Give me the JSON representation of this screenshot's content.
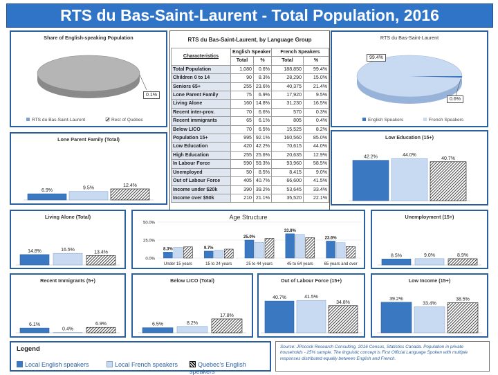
{
  "title": "RTS du Bas-Saint-Laurent - Total Population, 2016",
  "colors": {
    "english": "#3b78c2",
    "french": "#c7daf1",
    "quebec_english": "hatch-black",
    "frame": "#2a5f9e"
  },
  "pie_share": {
    "title": "Share of English-speaking Population",
    "label": "0.1%",
    "legend": [
      "RTS du Bas-Saint-Laurent",
      "Rest of Quebec"
    ]
  },
  "pie_lang": {
    "title": "RTS du Bas-Saint-Laurent",
    "label_fr": "99.4%",
    "label_en": "0.6%",
    "legend": [
      "English Speakers",
      "French Speakers"
    ]
  },
  "table": {
    "title": "RTS du Bas-Saint-Laurent, by Language Group",
    "head": {
      "characteristics": "Characteristics",
      "english": "English Speakers",
      "french": "French Speakers",
      "total": "Total",
      "pct": "%"
    },
    "rows": [
      [
        "Total Population",
        "1,080",
        "0.6%",
        "188,850",
        "99.4%"
      ],
      [
        "Children 0 to 14",
        "90",
        "8.3%",
        "28,290",
        "15.0%"
      ],
      [
        "Seniors 65+",
        "255",
        "23.6%",
        "40,375",
        "21.4%"
      ],
      [
        "Lone Parent Family",
        "75",
        "6.9%",
        "17,920",
        "9.5%"
      ],
      [
        "Living Alone",
        "160",
        "14.8%",
        "31,230",
        "16.5%"
      ],
      [
        "Recent inter-prov.",
        "70",
        "6.6%",
        "570",
        "0.3%"
      ],
      [
        "Recent immigrants",
        "65",
        "6.1%",
        "805",
        "0.4%"
      ],
      [
        "Below LICO",
        "70",
        "6.5%",
        "15,525",
        "8.2%"
      ],
      [
        "Population 15+",
        "995",
        "92.1%",
        "160,560",
        "85.0%"
      ],
      [
        "Low Education",
        "420",
        "42.2%",
        "70,615",
        "44.0%"
      ],
      [
        "High Education",
        "255",
        "25.6%",
        "20,635",
        "12.9%"
      ],
      [
        "In Labour Force",
        "590",
        "59.3%",
        "93,960",
        "58.5%"
      ],
      [
        "Unemployed",
        "50",
        "8.5%",
        "8,415",
        "9.0%"
      ],
      [
        "Out of Labour Force",
        "405",
        "40.7%",
        "66,600",
        "41.5%"
      ],
      [
        "Income under $20k",
        "390",
        "39.2%",
        "53,645",
        "33.4%"
      ],
      [
        "Income over $50k",
        "210",
        "21.1%",
        "35,520",
        "22.1%"
      ]
    ]
  },
  "chart_data": [
    {
      "id": "share",
      "type": "pie",
      "title": "Share of English-speaking Population",
      "slices": [
        {
          "name": "RTS du Bas-Saint-Laurent",
          "value": 0.1
        },
        {
          "name": "Rest of Quebec",
          "value": 99.9
        }
      ]
    },
    {
      "id": "lang",
      "type": "pie",
      "title": "RTS du Bas-Saint-Laurent",
      "slices": [
        {
          "name": "English Speakers",
          "value": 0.6
        },
        {
          "name": "French Speakers",
          "value": 99.4
        }
      ]
    },
    {
      "id": "lone",
      "type": "bar",
      "title": "Lone Parent Family (Total)",
      "values": [
        6.9,
        9.5,
        12.4
      ],
      "labels": [
        "6.9%",
        "9.5%",
        "12.4%"
      ]
    },
    {
      "id": "lowedu",
      "type": "bar",
      "title": "Low Education (15+)",
      "values": [
        42.2,
        44.0,
        40.7
      ],
      "labels": [
        "42.2%",
        "44.0%",
        "40.7%"
      ]
    },
    {
      "id": "alone",
      "type": "bar",
      "title": "Living Alone (Total)",
      "values": [
        14.8,
        16.5,
        13.4
      ],
      "labels": [
        "14.8%",
        "16.5%",
        "13.4%"
      ]
    },
    {
      "id": "age",
      "type": "bar",
      "title": "Age Structure",
      "categories": [
        "Under 15 years",
        "15 to 24 years",
        "25 to 44 years",
        "45 to 64 years",
        "65 years and over"
      ],
      "series": [
        {
          "name": "Local English speakers",
          "values": [
            8.3,
            9.7,
            25.0,
            33.8,
            23.6
          ],
          "labels": [
            "8.3%",
            "9.7%",
            "25.0%",
            "33.8%",
            "23.6%"
          ]
        },
        {
          "name": "Local French speakers",
          "values": [
            15.0,
            11.0,
            22.0,
            33.0,
            21.4
          ]
        },
        {
          "name": "Quebec's English speakers",
          "values": [
            15.6,
            12.5,
            27.5,
            28.4,
            16.0
          ]
        }
      ],
      "ylim": [
        0,
        50
      ],
      "yticks": [
        "0.0%",
        "25.0%",
        "50.0%"
      ]
    },
    {
      "id": "unemp",
      "type": "bar",
      "title": "Unemployment (15+)",
      "values": [
        8.5,
        9.0,
        8.9
      ],
      "labels": [
        "8.5%",
        "9.0%",
        "8.9%"
      ]
    },
    {
      "id": "immig",
      "type": "bar",
      "title": "Recent Immigrants (5+)",
      "values": [
        6.1,
        0.4,
        6.9
      ],
      "labels": [
        "6.1%",
        "0.4%",
        "6.9%"
      ]
    },
    {
      "id": "lico",
      "type": "bar",
      "title": "Below LICO (Total)",
      "values": [
        6.5,
        8.2,
        17.8
      ],
      "labels": [
        "6.5%",
        "8.2%",
        "17.8%"
      ]
    },
    {
      "id": "olf",
      "type": "bar",
      "title": "Out of Labour Force (15+)",
      "values": [
        40.7,
        41.5,
        34.8
      ],
      "labels": [
        "40.7%",
        "41.5%",
        "34.8%"
      ]
    },
    {
      "id": "lowinc",
      "type": "bar",
      "title": "Low Income (15+)",
      "values": [
        39.2,
        33.4,
        38.5
      ],
      "labels": [
        "39.2%",
        "33.4%",
        "38.5%"
      ]
    }
  ],
  "legend": {
    "title": "Legend",
    "items": [
      "Local English speakers",
      "Local French speakers",
      "Quebec's English speakers"
    ]
  },
  "source": "Source: JPocock Research Consulting, 2016 Census, Statistics Canada. Population in private households - 25% sample. The linguistic concept is First Official Language Spoken with multiple responses distributed equally between English and French."
}
